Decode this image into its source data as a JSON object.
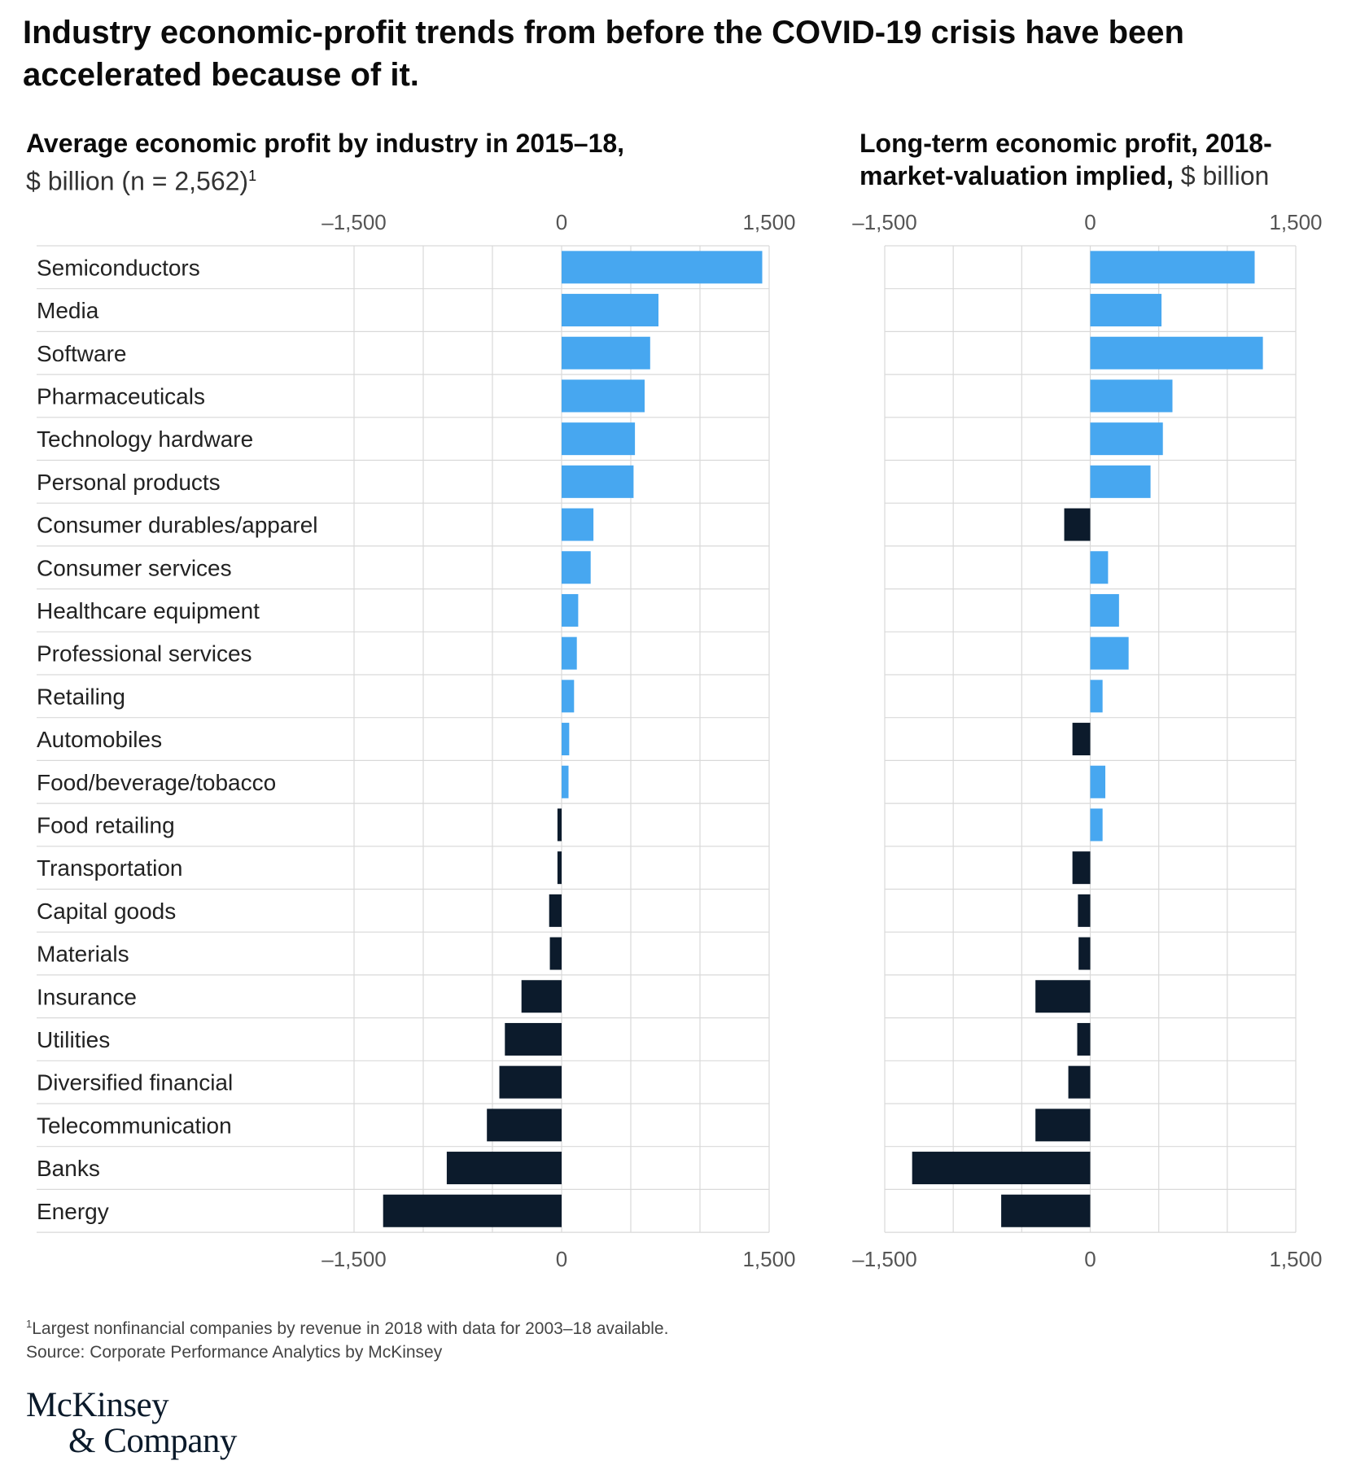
{
  "title": "Industry economic-profit trends from before the COVID-19 crisis have been accelerated because of it.",
  "left_subtitle": {
    "bold": "Average economic profit by industry in 2015–18,",
    "unit": "$ billion (n = 2,562)",
    "sup": "1"
  },
  "right_subtitle": {
    "bold": "Long-term economic profit, 2018-market-valuation implied,",
    "unit": "$ billion"
  },
  "colors": {
    "positive": "#47a7f0",
    "negative": "#0c1b2c",
    "grid": "#d9d9d9",
    "axis_text": "#555555"
  },
  "chart_data": [
    {
      "type": "bar",
      "orientation": "horizontal",
      "title": "Average economic profit by industry in 2015–18, $ billion (n = 2,562)",
      "categories": [
        "Semiconductors",
        "Media",
        "Software",
        "Pharmaceuticals",
        "Technology hardware",
        "Personal products",
        "Consumer durables/apparel",
        "Consumer services",
        "Healthcare equipment",
        "Professional services",
        "Retailing",
        "Automobiles",
        "Food/beverage/tobacco",
        "Food retailing",
        "Transportation",
        "Capital goods",
        "Materials",
        "Insurance",
        "Utilities",
        "Diversified financial",
        "Telecommunication",
        "Banks",
        "Energy"
      ],
      "values": [
        1450,
        700,
        640,
        600,
        530,
        520,
        230,
        210,
        120,
        110,
        90,
        55,
        50,
        -30,
        -30,
        -90,
        -85,
        -290,
        -410,
        -450,
        -540,
        -830,
        -1290
      ],
      "xlim": [
        -1500,
        1500
      ],
      "ticks": [
        -1500,
        0,
        1500
      ],
      "tick_labels": [
        "–1,500",
        "0",
        "1,500"
      ]
    },
    {
      "type": "bar",
      "orientation": "horizontal",
      "title": "Long-term economic profit, 2018-market-valuation implied, $ billion",
      "categories": [
        "Semiconductors",
        "Media",
        "Software",
        "Pharmaceuticals",
        "Technology hardware",
        "Personal products",
        "Consumer durables/apparel",
        "Consumer services",
        "Healthcare equipment",
        "Professional services",
        "Retailing",
        "Automobiles",
        "Food/beverage/tobacco",
        "Food retailing",
        "Transportation",
        "Capital goods",
        "Materials",
        "Insurance",
        "Utilities",
        "Diversified financial",
        "Telecommunication",
        "Banks",
        "Energy"
      ],
      "values": [
        1200,
        520,
        1260,
        600,
        530,
        440,
        -190,
        130,
        210,
        280,
        90,
        -130,
        110,
        90,
        -130,
        -90,
        -85,
        -400,
        -95,
        -160,
        -400,
        -1300,
        -650
      ],
      "xlim": [
        -1500,
        1500
      ],
      "ticks": [
        -1500,
        0,
        1500
      ],
      "tick_labels": [
        "–1,500",
        "0",
        "1,500"
      ]
    }
  ],
  "footnote": {
    "sup": "1",
    "text": "Largest nonfinancial companies by revenue in 2018 with data for 2003–18 available."
  },
  "source": "Source: Corporate Performance Analytics by McKinsey",
  "logo": {
    "line1": "McKinsey",
    "line2": "& Company"
  }
}
